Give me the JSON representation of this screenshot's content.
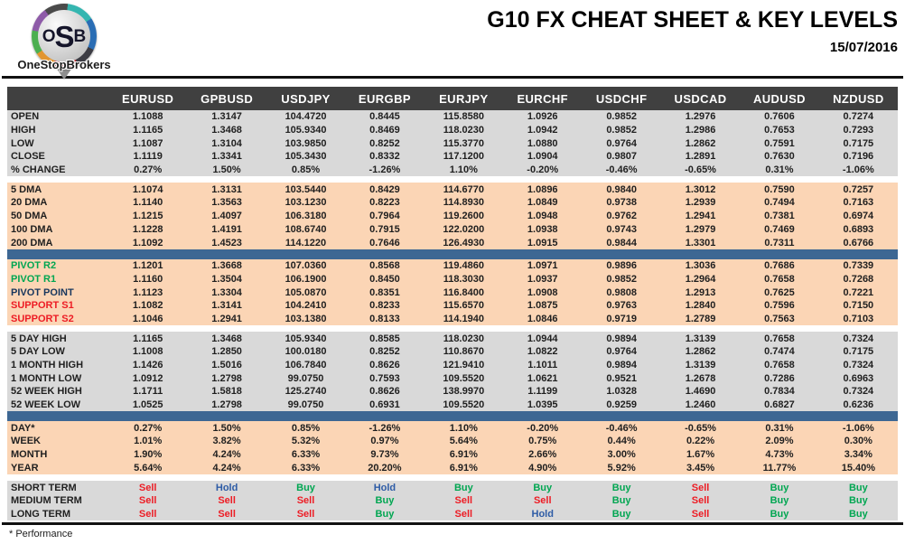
{
  "logo": {
    "letters": [
      "O",
      "S",
      "B"
    ],
    "caption": "OneStopBrokers"
  },
  "header": {
    "title": "G10 FX CHEAT SHEET & KEY LEVELS",
    "date": "15/07/2016"
  },
  "colors": {
    "header_bg": "#404040",
    "row_gray": "#D9D9D9",
    "row_peach": "#FBD5B5",
    "divider_blue": "#3D6793",
    "buy_green": "#00A651",
    "sell_red": "#ED1C24",
    "hold_blue": "#2E5CA6",
    "pivot_navy": "#17365D"
  },
  "table": {
    "columns": [
      "EURUSD",
      "GPBUSD",
      "USDJPY",
      "EURGBP",
      "EURJPY",
      "EURCHF",
      "USDCHF",
      "USDCAD",
      "AUDUSD",
      "NZDUSD"
    ],
    "sections": [
      {
        "id": "ohlc",
        "bg": "gray",
        "separator": "none",
        "rows": [
          {
            "label": "OPEN",
            "values": [
              "1.1088",
              "1.3147",
              "104.4720",
              "0.8445",
              "115.8580",
              "1.0926",
              "0.9852",
              "1.2976",
              "0.7606",
              "0.7274"
            ]
          },
          {
            "label": "HIGH",
            "values": [
              "1.1165",
              "1.3468",
              "105.9340",
              "0.8469",
              "118.0230",
              "1.0942",
              "0.9852",
              "1.2986",
              "0.7653",
              "0.7293"
            ]
          },
          {
            "label": "LOW",
            "values": [
              "1.1087",
              "1.3104",
              "103.9850",
              "0.8252",
              "115.3770",
              "1.0880",
              "0.9764",
              "1.2862",
              "0.7591",
              "0.7175"
            ]
          },
          {
            "label": "CLOSE",
            "values": [
              "1.1119",
              "1.3341",
              "105.3430",
              "0.8332",
              "117.1200",
              "1.0904",
              "0.9807",
              "1.2891",
              "0.7630",
              "0.7196"
            ]
          },
          {
            "label": "% CHANGE",
            "values": [
              "0.27%",
              "1.50%",
              "0.85%",
              "-1.26%",
              "1.10%",
              "-0.20%",
              "-0.46%",
              "-0.65%",
              "0.31%",
              "-1.06%"
            ]
          }
        ]
      },
      {
        "id": "moving-averages",
        "bg": "peach",
        "separator": "gap",
        "rows": [
          {
            "label": "5 DMA",
            "values": [
              "1.1074",
              "1.3131",
              "103.5440",
              "0.8429",
              "114.6770",
              "1.0896",
              "0.9840",
              "1.3012",
              "0.7590",
              "0.7257"
            ]
          },
          {
            "label": "20 DMA",
            "values": [
              "1.1140",
              "1.3563",
              "103.1230",
              "0.8223",
              "114.8930",
              "1.0849",
              "0.9738",
              "1.2939",
              "0.7494",
              "0.7163"
            ]
          },
          {
            "label": "50 DMA",
            "values": [
              "1.1215",
              "1.4097",
              "106.3180",
              "0.7964",
              "119.2600",
              "1.0948",
              "0.9762",
              "1.2941",
              "0.7381",
              "0.6974"
            ]
          },
          {
            "label": "100 DMA",
            "values": [
              "1.1228",
              "1.4191",
              "108.6740",
              "0.7915",
              "122.0200",
              "1.0938",
              "0.9743",
              "1.2979",
              "0.7469",
              "0.6893"
            ]
          },
          {
            "label": "200 DMA",
            "values": [
              "1.1092",
              "1.4523",
              "114.1220",
              "0.7646",
              "126.4930",
              "1.0915",
              "0.9844",
              "1.3301",
              "0.7311",
              "0.6766"
            ]
          }
        ]
      },
      {
        "id": "pivots",
        "bg": "peach",
        "separator": "blue",
        "rows": [
          {
            "label": "PIVOT R2",
            "label_color": "green",
            "values": [
              "1.1201",
              "1.3668",
              "107.0360",
              "0.8568",
              "119.4860",
              "1.0971",
              "0.9896",
              "1.3036",
              "0.7686",
              "0.7339"
            ]
          },
          {
            "label": "PIVOT R1",
            "label_color": "green",
            "values": [
              "1.1160",
              "1.3504",
              "106.1900",
              "0.8450",
              "118.3030",
              "1.0937",
              "0.9852",
              "1.2964",
              "0.7658",
              "0.7268"
            ]
          },
          {
            "label": "PIVOT POINT",
            "label_color": "navy",
            "values": [
              "1.1123",
              "1.3304",
              "105.0870",
              "0.8351",
              "116.8400",
              "1.0908",
              "0.9808",
              "1.2913",
              "0.7625",
              "0.7221"
            ]
          },
          {
            "label": "SUPPORT S1",
            "label_color": "red",
            "values": [
              "1.1082",
              "1.3141",
              "104.2410",
              "0.8233",
              "115.6570",
              "1.0875",
              "0.9763",
              "1.2840",
              "0.7596",
              "0.7150"
            ]
          },
          {
            "label": "SUPPORT S2",
            "label_color": "red",
            "values": [
              "1.1046",
              "1.2941",
              "103.1380",
              "0.8133",
              "114.1940",
              "1.0846",
              "0.9719",
              "1.2789",
              "0.7563",
              "0.7103"
            ]
          }
        ]
      },
      {
        "id": "ranges",
        "bg": "gray",
        "separator": "gap",
        "rows": [
          {
            "label": "5 DAY HIGH",
            "values": [
              "1.1165",
              "1.3468",
              "105.9340",
              "0.8585",
              "118.0230",
              "1.0944",
              "0.9894",
              "1.3139",
              "0.7658",
              "0.7324"
            ]
          },
          {
            "label": "5 DAY LOW",
            "values": [
              "1.1008",
              "1.2850",
              "100.0180",
              "0.8252",
              "110.8670",
              "1.0822",
              "0.9764",
              "1.2862",
              "0.7474",
              "0.7175"
            ]
          },
          {
            "label": "1 MONTH HIGH",
            "values": [
              "1.1426",
              "1.5016",
              "106.7840",
              "0.8626",
              "121.9410",
              "1.1011",
              "0.9894",
              "1.3139",
              "0.7658",
              "0.7324"
            ]
          },
          {
            "label": "1 MONTH LOW",
            "values": [
              "1.0912",
              "1.2798",
              "99.0750",
              "0.7593",
              "109.5520",
              "1.0621",
              "0.9521",
              "1.2678",
              "0.7286",
              "0.6963"
            ]
          },
          {
            "label": "52 WEEK HIGH",
            "values": [
              "1.1711",
              "1.5818",
              "125.2740",
              "0.8626",
              "138.9970",
              "1.1199",
              "1.0328",
              "1.4690",
              "0.7834",
              "0.7324"
            ]
          },
          {
            "label": "52 WEEK LOW",
            "values": [
              "1.0525",
              "1.2798",
              "99.0750",
              "0.6931",
              "109.5520",
              "1.0395",
              "0.9259",
              "1.2460",
              "0.6827",
              "0.6236"
            ]
          }
        ]
      },
      {
        "id": "performance",
        "bg": "peach",
        "separator": "blue",
        "rows": [
          {
            "label": "DAY*",
            "values": [
              "0.27%",
              "1.50%",
              "0.85%",
              "-1.26%",
              "1.10%",
              "-0.20%",
              "-0.46%",
              "-0.65%",
              "0.31%",
              "-1.06%"
            ]
          },
          {
            "label": "WEEK",
            "values": [
              "1.01%",
              "3.82%",
              "5.32%",
              "0.97%",
              "5.64%",
              "0.75%",
              "0.44%",
              "0.22%",
              "2.09%",
              "0.30%"
            ]
          },
          {
            "label": "MONTH",
            "values": [
              "1.90%",
              "4.24%",
              "6.33%",
              "9.73%",
              "6.91%",
              "2.66%",
              "3.00%",
              "1.67%",
              "4.73%",
              "3.34%"
            ]
          },
          {
            "label": "YEAR",
            "values": [
              "5.64%",
              "4.24%",
              "6.33%",
              "20.20%",
              "6.91%",
              "4.90%",
              "5.92%",
              "3.45%",
              "11.77%",
              "15.40%"
            ]
          }
        ]
      },
      {
        "id": "signals",
        "bg": "gray",
        "separator": "gap",
        "type": "signals",
        "rows": [
          {
            "label": "SHORT TERM",
            "values": [
              "Sell",
              "Hold",
              "Buy",
              "Hold",
              "Buy",
              "Buy",
              "Buy",
              "Sell",
              "Buy",
              "Buy"
            ]
          },
          {
            "label": "MEDIUM TERM",
            "values": [
              "Sell",
              "Sell",
              "Sell",
              "Buy",
              "Sell",
              "Sell",
              "Buy",
              "Sell",
              "Buy",
              "Buy"
            ]
          },
          {
            "label": "LONG TERM",
            "values": [
              "Sell",
              "Sell",
              "Sell",
              "Buy",
              "Sell",
              "Hold",
              "Buy",
              "Sell",
              "Buy",
              "Buy"
            ]
          }
        ]
      }
    ]
  },
  "footer": {
    "note": "* Performance"
  }
}
